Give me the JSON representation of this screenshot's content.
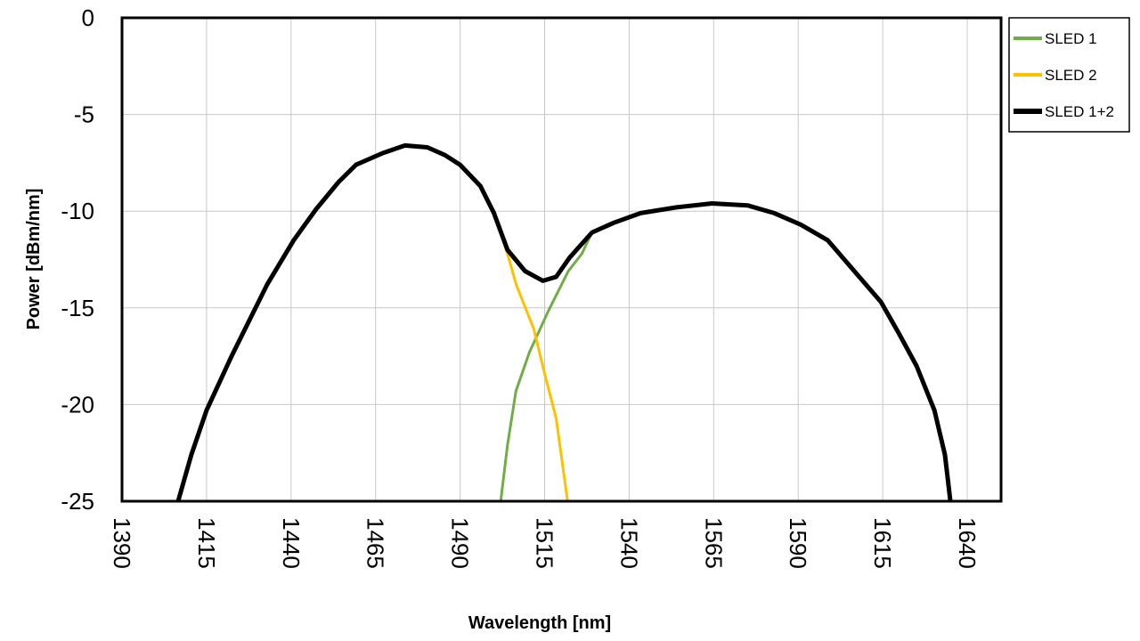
{
  "chart_data": {
    "type": "line",
    "title": "",
    "xlabel": "Wavelength [nm]",
    "ylabel": "Power [dBm/nm]",
    "xlim": [
      1390,
      1650
    ],
    "ylim": [
      -25,
      0
    ],
    "xticks": [
      "1390",
      "1415",
      "1440",
      "1465",
      "1490",
      "1515",
      "1540",
      "1565",
      "1590",
      "1615",
      "1640"
    ],
    "yticks": [
      "0",
      "-5",
      "-10",
      "-15",
      "-20",
      "-25"
    ],
    "grid": true,
    "legend": "right",
    "series": [
      {
        "name": "SLED 1",
        "color": "#70AD47",
        "x": [
          1502,
          1504,
          1506.5,
          1510.5,
          1516,
          1522,
          1526,
          1529,
          1535.5,
          1543.4,
          1554,
          1564.5,
          1575,
          1582.9,
          1590.8,
          1598.7,
          1606.6,
          1614.5,
          1619.7,
          1625,
          1630.3,
          1633.4,
          1635
        ],
        "y": [
          -25,
          -22.1,
          -19.3,
          -17.3,
          -15.2,
          -13.1,
          -12.2,
          -11.1,
          -10.6,
          -10.1,
          -9.8,
          -9.6,
          -9.7,
          -10.1,
          -10.7,
          -11.5,
          -13.1,
          -14.7,
          -16.3,
          -18,
          -20.3,
          -22.6,
          -25
        ]
      },
      {
        "name": "SLED 2",
        "color": "#FFC000",
        "x": [
          1406.6,
          1410.5,
          1415,
          1422.4,
          1432.9,
          1440.8,
          1447.4,
          1454,
          1459.2,
          1467.1,
          1473.7,
          1480.3,
          1485.5,
          1490,
          1496,
          1500,
          1504,
          1506.6,
          1511.8,
          1515,
          1518.4,
          1521.8
        ],
        "y": [
          -25,
          -22.6,
          -20.3,
          -17.5,
          -13.8,
          -11.5,
          -9.9,
          -8.5,
          -7.6,
          -7.0,
          -6.6,
          -6.7,
          -7.1,
          -7.6,
          -8.7,
          -10.1,
          -12.2,
          -13.8,
          -16.1,
          -18.4,
          -20.7,
          -25
        ]
      },
      {
        "name": "SLED 1+2",
        "color": "#000000",
        "x": [
          1406.6,
          1410.5,
          1415,
          1422.4,
          1432.9,
          1440.8,
          1447.4,
          1454,
          1459.2,
          1467.1,
          1473.7,
          1480.3,
          1485.5,
          1490,
          1496,
          1500,
          1504,
          1509.2,
          1514.5,
          1518.4,
          1522.4,
          1529,
          1535.5,
          1543.4,
          1554,
          1564.5,
          1575,
          1582.9,
          1590.8,
          1598.7,
          1606.6,
          1614.5,
          1619.7,
          1625,
          1630.3,
          1633.4,
          1635
        ],
        "y": [
          -25,
          -22.6,
          -20.3,
          -17.5,
          -13.8,
          -11.5,
          -9.9,
          -8.5,
          -7.6,
          -7.0,
          -6.6,
          -6.7,
          -7.1,
          -7.6,
          -8.7,
          -10.1,
          -12.0,
          -13.1,
          -13.6,
          -13.4,
          -12.4,
          -11.1,
          -10.6,
          -10.1,
          -9.8,
          -9.6,
          -9.7,
          -10.1,
          -10.7,
          -11.5,
          -13.1,
          -14.7,
          -16.3,
          -18,
          -20.3,
          -22.6,
          -25
        ]
      }
    ]
  }
}
